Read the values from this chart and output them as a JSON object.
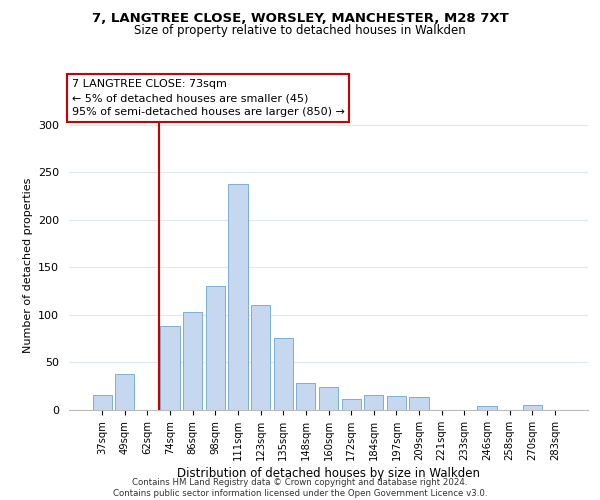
{
  "title": "7, LANGTREE CLOSE, WORSLEY, MANCHESTER, M28 7XT",
  "subtitle": "Size of property relative to detached houses in Walkden",
  "xlabel": "Distribution of detached houses by size in Walkden",
  "ylabel": "Number of detached properties",
  "bar_labels": [
    "37sqm",
    "49sqm",
    "62sqm",
    "74sqm",
    "86sqm",
    "98sqm",
    "111sqm",
    "123sqm",
    "135sqm",
    "148sqm",
    "160sqm",
    "172sqm",
    "184sqm",
    "197sqm",
    "209sqm",
    "221sqm",
    "233sqm",
    "246sqm",
    "258sqm",
    "270sqm",
    "283sqm"
  ],
  "bar_heights": [
    16,
    38,
    0,
    88,
    103,
    130,
    238,
    110,
    76,
    28,
    24,
    12,
    16,
    15,
    14,
    0,
    0,
    4,
    0,
    5,
    0
  ],
  "bar_color": "#c5d8f0",
  "bar_edge_color": "#7bafd4",
  "vline_x_index": 3,
  "vline_color": "#cc0000",
  "annotation_line1": "7 LANGTREE CLOSE: 73sqm",
  "annotation_line2": "← 5% of detached houses are smaller (45)",
  "annotation_line3": "95% of semi-detached houses are larger (850) →",
  "annotation_box_color": "#ffffff",
  "annotation_box_edge": "#cc0000",
  "ylim": [
    0,
    305
  ],
  "yticks": [
    0,
    50,
    100,
    150,
    200,
    250,
    300
  ],
  "footer": "Contains HM Land Registry data © Crown copyright and database right 2024.\nContains public sector information licensed under the Open Government Licence v3.0.",
  "bg_color": "#ffffff",
  "grid_color": "#dde8f5"
}
